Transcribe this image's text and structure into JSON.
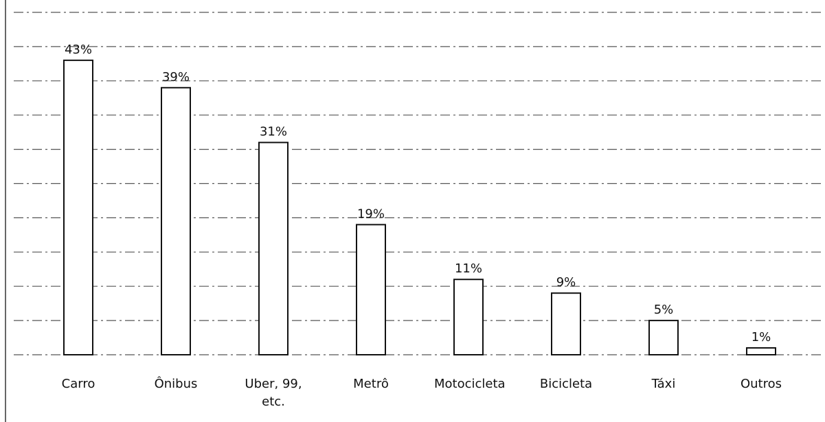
{
  "chart_data": {
    "type": "bar",
    "categories": [
      "Carro",
      "Ônibus",
      "Uber, 99, etc.",
      "Metrô",
      "Motocicleta",
      "Bicicleta",
      "Táxi",
      "Outros"
    ],
    "values": [
      43,
      39,
      31,
      19,
      11,
      9,
      5,
      1
    ],
    "value_labels": [
      "43%",
      "39%",
      "31%",
      "19%",
      "11%",
      "9%",
      "5%",
      "1%"
    ],
    "color": "#ffffff",
    "ylim": [
      0,
      50
    ],
    "yticks": [
      0,
      5,
      10,
      15,
      20,
      25,
      30,
      35,
      40,
      45,
      50
    ],
    "grid": true
  }
}
